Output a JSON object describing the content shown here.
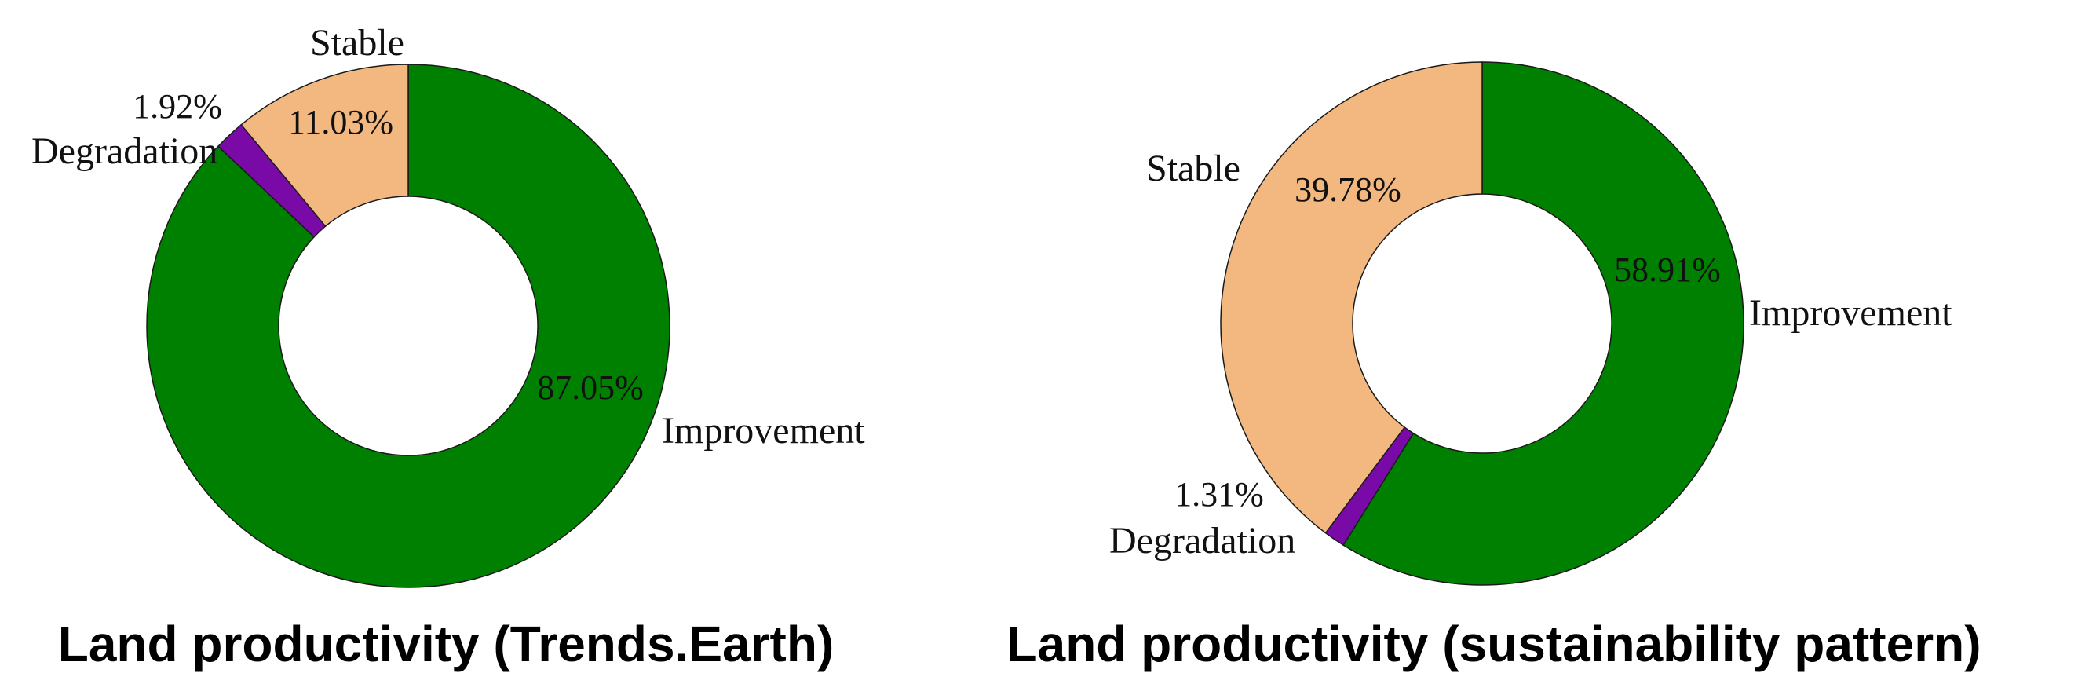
{
  "chart_data": [
    {
      "type": "pie",
      "donut": true,
      "title": "Land productivity (Trends.Earth)",
      "slices": [
        {
          "label": "Improvement",
          "value": 87.05,
          "percent_label": "87.05%",
          "color": "#008000"
        },
        {
          "label": "Degradation",
          "value": 1.92,
          "percent_label": "1.92%",
          "color": "#7a0aa8"
        },
        {
          "label": "Stable",
          "value": 11.03,
          "percent_label": "11.03%",
          "color": "#f2b880"
        }
      ],
      "legend": "none"
    },
    {
      "type": "pie",
      "donut": true,
      "title": "Land productivity (sustainability pattern)",
      "slices": [
        {
          "label": "Improvement",
          "value": 58.91,
          "percent_label": "58.91%",
          "color": "#008000"
        },
        {
          "label": "Degradation",
          "value": 1.31,
          "percent_label": "1.31%",
          "color": "#7a0aa8"
        },
        {
          "label": "Stable",
          "value": 39.78,
          "percent_label": "39.78%",
          "color": "#f2b880"
        }
      ],
      "legend": "none"
    }
  ]
}
